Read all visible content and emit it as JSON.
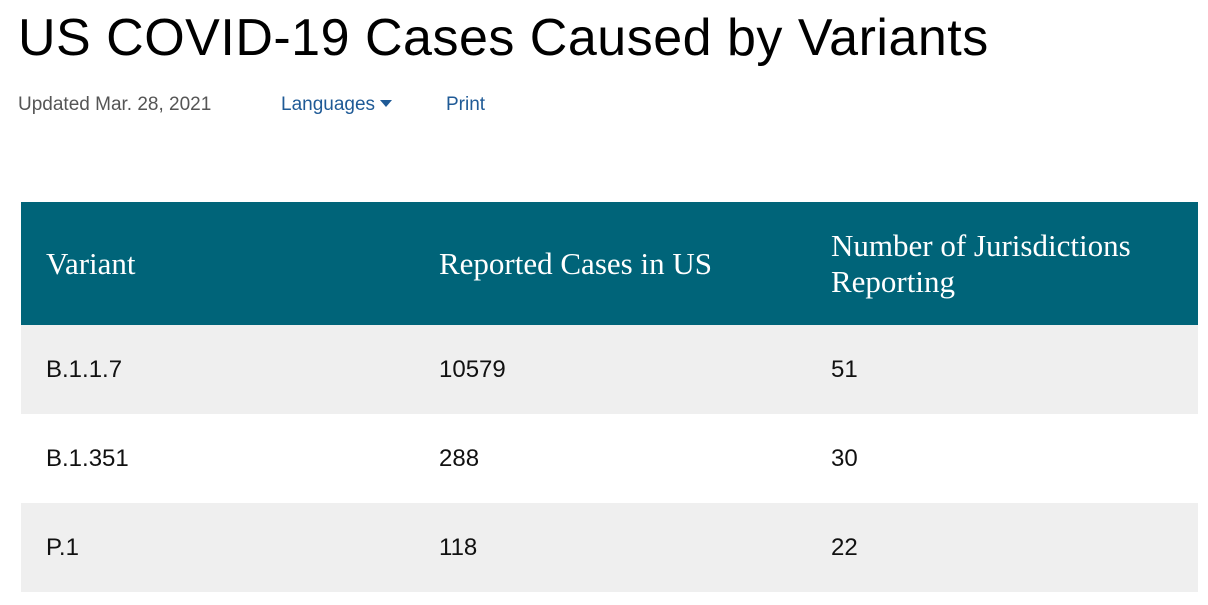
{
  "header": {
    "title": "US COVID-19 Cases Caused by Variants",
    "updated": "Updated Mar. 28, 2021",
    "links": [
      "Languages",
      "Print"
    ]
  },
  "table": {
    "columns": [
      "Variant",
      "Reported Cases in US",
      "Number of Jurisdictions Reporting"
    ],
    "rows": [
      [
        "B.1.1.7",
        10579,
        51
      ],
      [
        "B.1.351",
        288,
        30
      ],
      [
        "P.1",
        118,
        22
      ]
    ]
  }
}
